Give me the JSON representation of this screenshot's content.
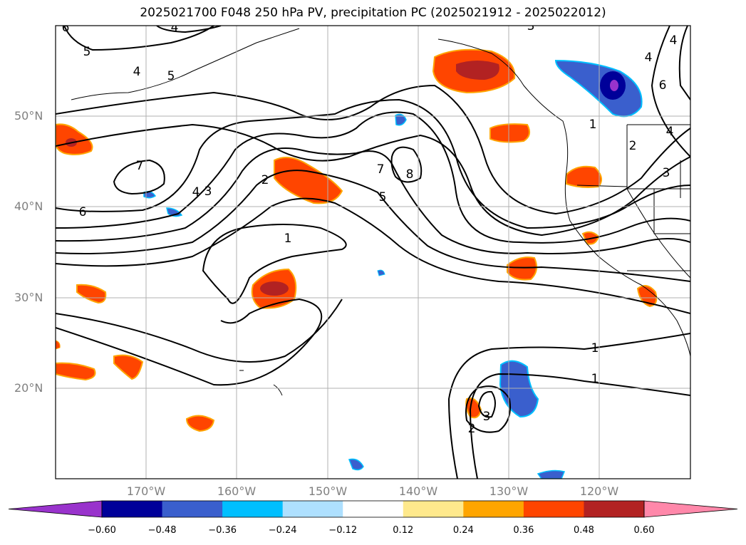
{
  "title": "2025021700 F048 250 hPa PV, precipitation PC (2025021912 - 2025022012)",
  "lat_labels": [
    "50°N",
    "40°N",
    "30°N",
    "20°N"
  ],
  "lon_labels": [
    "170°W",
    "160°W",
    "150°W",
    "140°W",
    "130°W",
    "120°W"
  ],
  "colorbar": {
    "ticks": [
      "−0.60",
      "−0.48",
      "−0.36",
      "−0.24",
      "−0.12",
      "0.12",
      "0.24",
      "0.36",
      "0.48",
      "0.60"
    ],
    "colors": [
      "#9933cc",
      "#000099",
      "#3a5fcd",
      "#00bfff",
      "#aee0ff",
      "#ffffff",
      "#ffe98c",
      "#ffa500",
      "#ff4500",
      "#b22222",
      "#ff88aa"
    ]
  },
  "contour_labels": [
    "6",
    "4",
    "5",
    "4",
    "5",
    "3",
    "4",
    "4",
    "7",
    "4",
    "3",
    "2",
    "6",
    "1",
    "7",
    "5",
    "8",
    "1",
    "2",
    "3",
    "1",
    "1",
    "2",
    "3",
    "4",
    "6"
  ],
  "map_extent": {
    "lon": [
      -180,
      -110
    ],
    "lat": [
      10,
      60
    ]
  }
}
